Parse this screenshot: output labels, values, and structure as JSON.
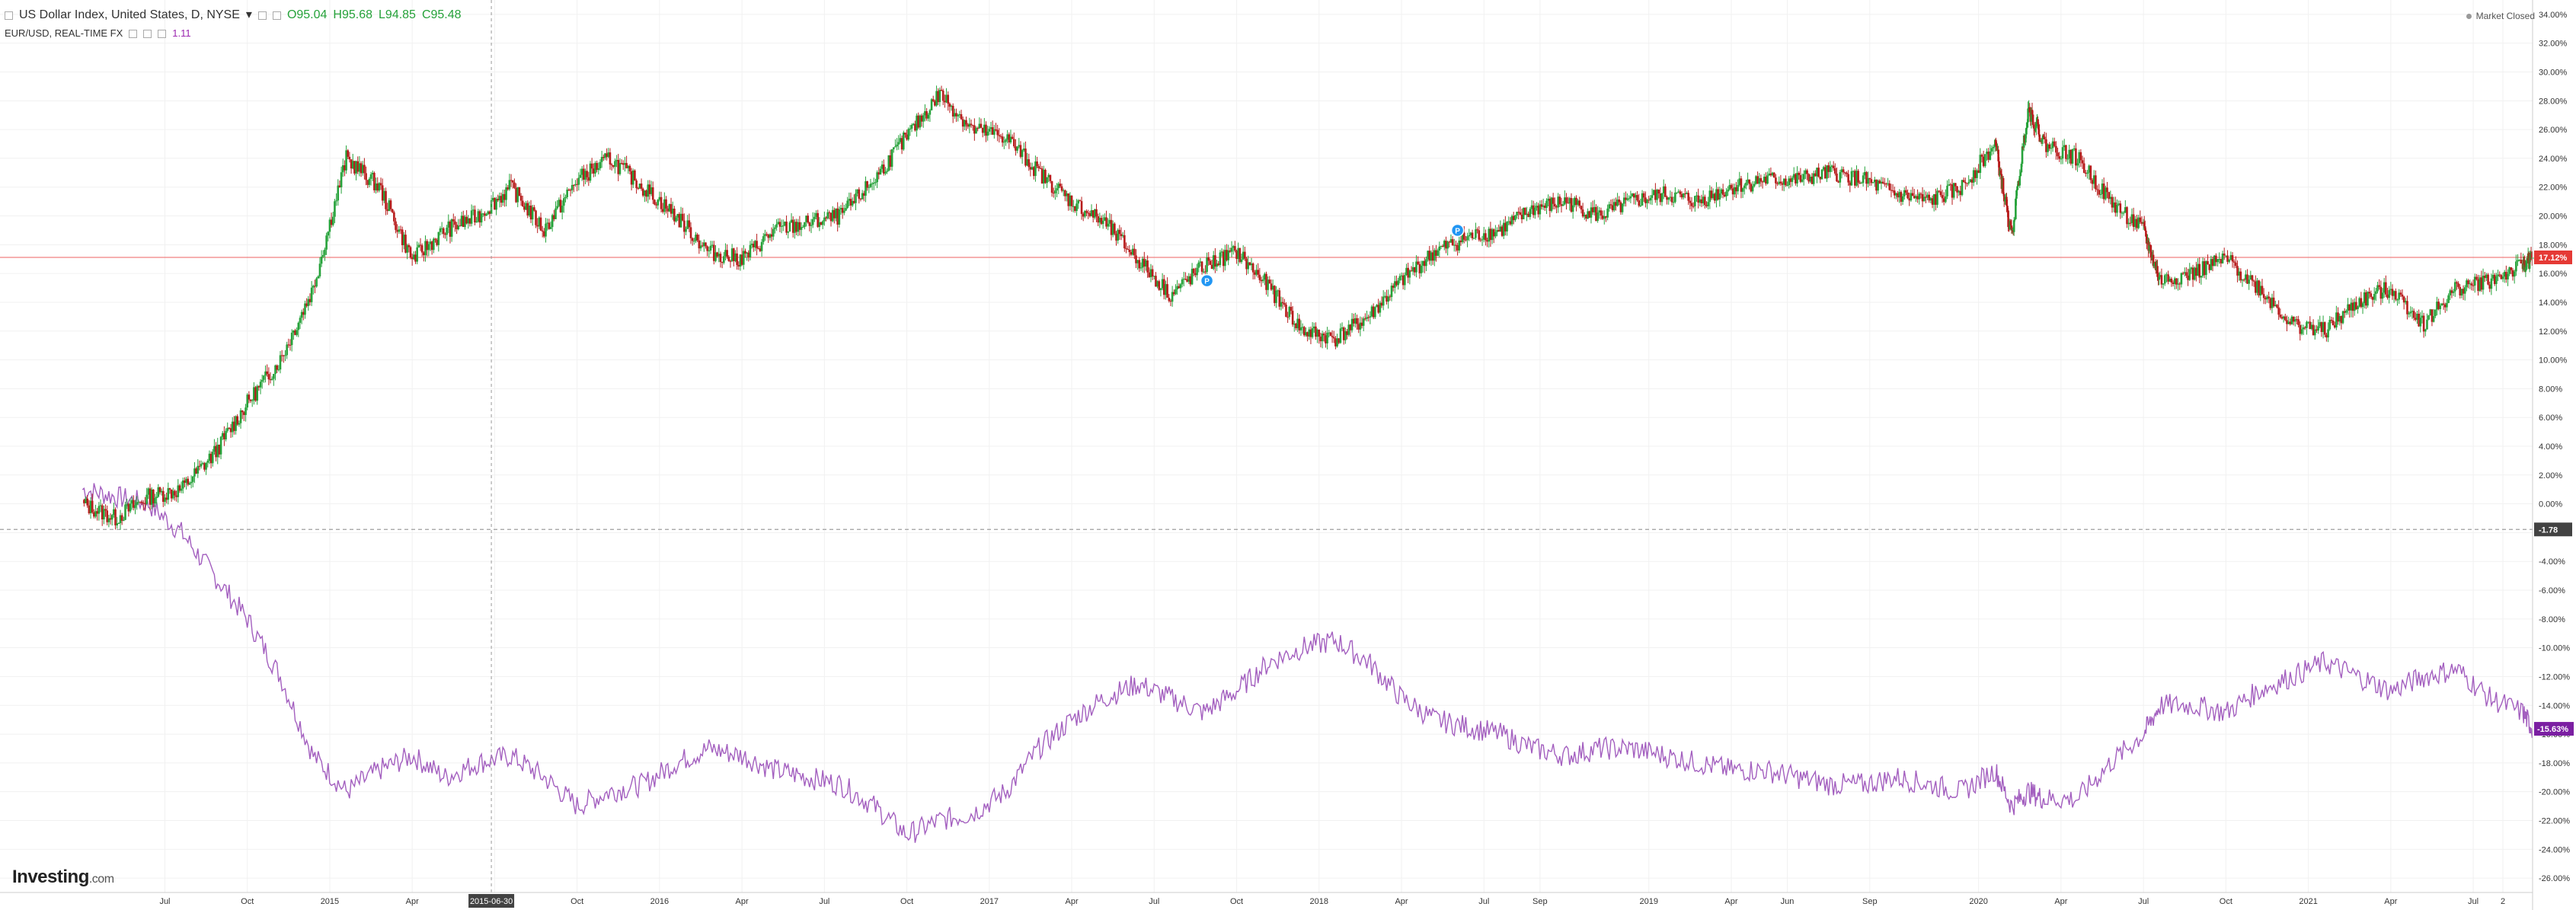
{
  "header": {
    "symbol_title": "US Dollar Index, United States, D, NYSE",
    "dropdown_glyph": "▾",
    "ohlc": {
      "open": "O95.04",
      "high": "H95.68",
      "low": "L94.85",
      "close": "C95.48"
    },
    "compare_title": "EUR/USD, REAL-TIME FX",
    "compare_value": "1.11",
    "market_status": "Market Closed"
  },
  "brand": {
    "name": "Investing",
    "suffix": ".com"
  },
  "chart_data": {
    "type": "line",
    "y_axis": {
      "position": "right",
      "ticks": [
        "34.00%",
        "32.00%",
        "30.00%",
        "28.00%",
        "26.00%",
        "24.00%",
        "22.00%",
        "20.00%",
        "18.00%",
        "16.00%",
        "14.00%",
        "12.00%",
        "10.00%",
        "8.00%",
        "6.00%",
        "4.00%",
        "2.00%",
        "0.00%",
        "-2.00%",
        "-4.00%",
        "-6.00%",
        "-8.00%",
        "-10.00%",
        "-12.00%",
        "-14.00%",
        "-16.00%",
        "-18.00%",
        "-20.00%",
        "-22.00%",
        "-24.00%",
        "-26.00%"
      ],
      "range": [
        -27,
        35
      ]
    },
    "x_axis": {
      "ticks": [
        {
          "t": 0.5,
          "label": "Jul"
        },
        {
          "t": 0.75,
          "label": "Oct"
        },
        {
          "t": 1.0,
          "label": "2015"
        },
        {
          "t": 1.25,
          "label": "Apr"
        },
        {
          "t": 1.5,
          "label": "Jul"
        },
        {
          "t": 1.75,
          "label": "Oct"
        },
        {
          "t": 2.0,
          "label": "2016"
        },
        {
          "t": 2.25,
          "label": "Apr"
        },
        {
          "t": 2.5,
          "label": "Jul"
        },
        {
          "t": 2.75,
          "label": "Oct"
        },
        {
          "t": 3.0,
          "label": "2017"
        },
        {
          "t": 3.25,
          "label": "Apr"
        },
        {
          "t": 3.5,
          "label": "Jul"
        },
        {
          "t": 3.75,
          "label": "Oct"
        },
        {
          "t": 4.0,
          "label": "2018"
        },
        {
          "t": 4.25,
          "label": "Apr"
        },
        {
          "t": 4.5,
          "label": "Jul"
        },
        {
          "t": 4.67,
          "label": "Sep"
        },
        {
          "t": 5.0,
          "label": "2019"
        },
        {
          "t": 5.25,
          "label": "Apr"
        },
        {
          "t": 5.42,
          "label": "Jun"
        },
        {
          "t": 5.67,
          "label": "Sep"
        },
        {
          "t": 6.0,
          "label": "2020"
        },
        {
          "t": 6.25,
          "label": "Apr"
        },
        {
          "t": 6.5,
          "label": "Jul"
        },
        {
          "t": 6.75,
          "label": "Oct"
        },
        {
          "t": 7.0,
          "label": "2021"
        },
        {
          "t": 7.25,
          "label": "Apr"
        },
        {
          "t": 7.5,
          "label": "Jul"
        },
        {
          "t": 7.59,
          "label": "2"
        }
      ],
      "range": [
        0,
        7.68
      ],
      "crosshair_label": "2015-06-30",
      "crosshair_t": 1.49
    },
    "series": [
      {
        "role": "main-candles",
        "up_color": "#26a23a",
        "down_color": "#b71c1c",
        "points": [
          [
            0.25,
            0.0
          ],
          [
            0.35,
            -1.0
          ],
          [
            0.45,
            0.5
          ],
          [
            0.55,
            1.0
          ],
          [
            0.65,
            3.5
          ],
          [
            0.75,
            7.0
          ],
          [
            0.85,
            10.0
          ],
          [
            0.95,
            15.0
          ],
          [
            1.05,
            24.0
          ],
          [
            1.15,
            22.0
          ],
          [
            1.25,
            17.0
          ],
          [
            1.35,
            19.0
          ],
          [
            1.45,
            20.0
          ],
          [
            1.55,
            22.0
          ],
          [
            1.65,
            19.0
          ],
          [
            1.75,
            22.5
          ],
          [
            1.85,
            24.0
          ],
          [
            1.95,
            22.0
          ],
          [
            2.05,
            20.0
          ],
          [
            2.15,
            17.5
          ],
          [
            2.25,
            17.0
          ],
          [
            2.35,
            19.0
          ],
          [
            2.45,
            19.5
          ],
          [
            2.55,
            20.0
          ],
          [
            2.65,
            22.5
          ],
          [
            2.75,
            25.5
          ],
          [
            2.85,
            28.5
          ],
          [
            2.95,
            26.0
          ],
          [
            3.05,
            25.5
          ],
          [
            3.15,
            23.0
          ],
          [
            3.25,
            21.0
          ],
          [
            3.35,
            19.5
          ],
          [
            3.45,
            17.0
          ],
          [
            3.55,
            14.5
          ],
          [
            3.65,
            16.5
          ],
          [
            3.75,
            17.5
          ],
          [
            3.85,
            15.0
          ],
          [
            3.95,
            12.0
          ],
          [
            4.05,
            11.5
          ],
          [
            4.15,
            13.0
          ],
          [
            4.25,
            15.5
          ],
          [
            4.35,
            17.5
          ],
          [
            4.45,
            18.5
          ],
          [
            4.55,
            19.0
          ],
          [
            4.65,
            20.5
          ],
          [
            4.75,
            21.0
          ],
          [
            4.85,
            20.0
          ],
          [
            4.95,
            21.0
          ],
          [
            5.05,
            21.5
          ],
          [
            5.15,
            21.0
          ],
          [
            5.25,
            22.0
          ],
          [
            5.35,
            22.5
          ],
          [
            5.45,
            22.5
          ],
          [
            5.55,
            23.0
          ],
          [
            5.65,
            22.5
          ],
          [
            5.75,
            21.5
          ],
          [
            5.85,
            21.0
          ],
          [
            5.95,
            22.0
          ],
          [
            6.05,
            25.0
          ],
          [
            6.1,
            18.5
          ],
          [
            6.15,
            27.5
          ],
          [
            6.2,
            25.0
          ],
          [
            6.3,
            24.0
          ],
          [
            6.4,
            21.0
          ],
          [
            6.5,
            19.0
          ],
          [
            6.55,
            15.5
          ],
          [
            6.65,
            16.0
          ],
          [
            6.75,
            17.0
          ],
          [
            6.85,
            15.0
          ],
          [
            6.95,
            12.5
          ],
          [
            7.05,
            12.0
          ],
          [
            7.15,
            14.0
          ],
          [
            7.25,
            15.0
          ],
          [
            7.35,
            12.5
          ],
          [
            7.45,
            15.0
          ],
          [
            7.55,
            15.5
          ],
          [
            7.65,
            16.5
          ],
          [
            7.68,
            17.12
          ]
        ]
      },
      {
        "role": "compare-line",
        "color": "#a35fbf",
        "points": [
          [
            0.25,
            1.0
          ],
          [
            0.35,
            0.5
          ],
          [
            0.45,
            0.0
          ],
          [
            0.55,
            -2.0
          ],
          [
            0.65,
            -5.0
          ],
          [
            0.75,
            -8.0
          ],
          [
            0.85,
            -12.0
          ],
          [
            0.95,
            -17.5
          ],
          [
            1.05,
            -20.0
          ],
          [
            1.15,
            -18.5
          ],
          [
            1.25,
            -17.5
          ],
          [
            1.35,
            -19.0
          ],
          [
            1.45,
            -18.0
          ],
          [
            1.55,
            -17.5
          ],
          [
            1.65,
            -19.0
          ],
          [
            1.75,
            -21.0
          ],
          [
            1.85,
            -20.0
          ],
          [
            1.95,
            -19.5
          ],
          [
            2.05,
            -18.0
          ],
          [
            2.15,
            -17.0
          ],
          [
            2.25,
            -17.5
          ],
          [
            2.35,
            -18.5
          ],
          [
            2.45,
            -19.0
          ],
          [
            2.55,
            -19.5
          ],
          [
            2.65,
            -21.0
          ],
          [
            2.75,
            -23.0
          ],
          [
            2.85,
            -22.0
          ],
          [
            2.95,
            -21.5
          ],
          [
            3.05,
            -20.0
          ],
          [
            3.15,
            -17.0
          ],
          [
            3.25,
            -15.0
          ],
          [
            3.35,
            -13.5
          ],
          [
            3.45,
            -12.5
          ],
          [
            3.55,
            -13.5
          ],
          [
            3.65,
            -14.5
          ],
          [
            3.75,
            -13.0
          ],
          [
            3.85,
            -11.0
          ],
          [
            3.95,
            -10.0
          ],
          [
            4.05,
            -9.5
          ],
          [
            4.15,
            -11.0
          ],
          [
            4.25,
            -13.5
          ],
          [
            4.35,
            -15.0
          ],
          [
            4.45,
            -15.5
          ],
          [
            4.55,
            -16.0
          ],
          [
            4.65,
            -17.0
          ],
          [
            4.75,
            -17.5
          ],
          [
            4.85,
            -17.0
          ],
          [
            4.95,
            -17.0
          ],
          [
            5.05,
            -17.5
          ],
          [
            5.15,
            -18.0
          ],
          [
            5.25,
            -18.5
          ],
          [
            5.35,
            -18.5
          ],
          [
            5.45,
            -19.0
          ],
          [
            5.55,
            -19.5
          ],
          [
            5.65,
            -19.5
          ],
          [
            5.75,
            -19.0
          ],
          [
            5.85,
            -19.5
          ],
          [
            5.95,
            -20.0
          ],
          [
            6.05,
            -18.5
          ],
          [
            6.1,
            -21.0
          ],
          [
            6.15,
            -20.0
          ],
          [
            6.2,
            -20.5
          ],
          [
            6.3,
            -20.5
          ],
          [
            6.4,
            -18.0
          ],
          [
            6.5,
            -16.0
          ],
          [
            6.55,
            -14.0
          ],
          [
            6.65,
            -14.0
          ],
          [
            6.75,
            -14.5
          ],
          [
            6.85,
            -13.0
          ],
          [
            6.95,
            -12.0
          ],
          [
            7.05,
            -11.0
          ],
          [
            7.15,
            -12.0
          ],
          [
            7.25,
            -13.0
          ],
          [
            7.35,
            -12.0
          ],
          [
            7.45,
            -11.5
          ],
          [
            7.55,
            -13.5
          ],
          [
            7.65,
            -14.5
          ],
          [
            7.68,
            -15.63
          ]
        ]
      }
    ],
    "reference_lines": [
      {
        "y": 17.12,
        "color": "#f08080",
        "style": "solid",
        "label": "17.12%",
        "label_bg": "#e53935"
      },
      {
        "y": -1.78,
        "color": "#9e9e9e",
        "style": "dashed",
        "label": "-1.78",
        "label_bg": "#424242"
      }
    ],
    "last_value_labels": [
      {
        "y": -15.63,
        "label": "-15.63%",
        "bg": "#7b1fa2"
      }
    ],
    "event_markers": [
      {
        "t": 3.66,
        "y": 15.5,
        "label": "P",
        "color": "#2196f3"
      },
      {
        "t": 4.42,
        "y": 19.0,
        "label": "P",
        "color": "#2196f3"
      }
    ],
    "grid": true
  }
}
